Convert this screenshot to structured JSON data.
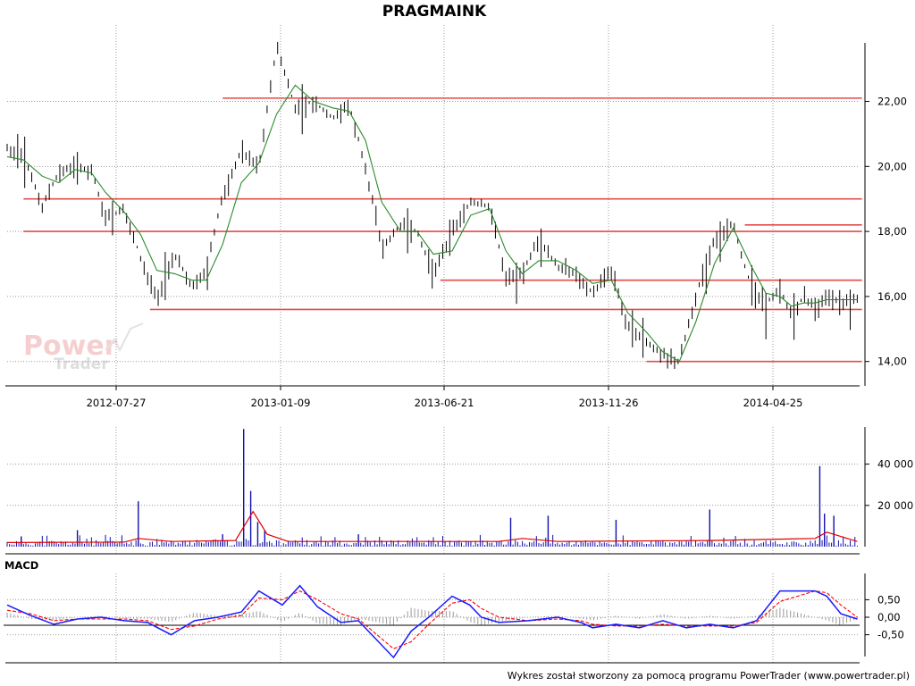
{
  "title": "PRAGMAINK",
  "footer": "Wykres został stworzony za pomocą programu PowerTrader (www.powertrader.pl)",
  "watermark": {
    "line1": "Power",
    "line2": "Trader"
  },
  "macd_label": "MACD",
  "colors": {
    "price": "#000000",
    "sma": "#2a8a2a",
    "level": "#e44b4b",
    "volume": "#1010b0",
    "volume_avg": "#e00000",
    "macd": "#1a1aff",
    "signal": "#ff0000",
    "hist": "#9a9a9a"
  },
  "chart_data": [
    {
      "type": "line",
      "title": "PRAGMAINK",
      "x_tick_labels": [
        "2012-07-27",
        "2013-01-09",
        "2013-06-21",
        "2013-11-26",
        "2014-04-25"
      ],
      "y_tick_labels": [
        "14,00",
        "16,00",
        "18,00",
        "20,00",
        "22,00"
      ],
      "y_ticks": [
        14,
        16,
        18,
        20,
        22
      ],
      "ylim": [
        13.25,
        23.8
      ],
      "grid": true,
      "x_days": [
        0,
        14,
        30,
        44,
        58,
        72,
        84,
        100,
        114,
        128,
        143,
        158,
        170,
        184,
        200,
        215,
        230,
        246,
        262,
        278,
        292,
        306,
        320,
        336,
        350,
        364,
        380,
        396,
        412,
        426,
        440,
        454,
        470,
        486,
        500,
        516,
        530,
        546,
        560,
        574,
        588,
        604,
        620,
        636,
        648,
        660,
        670,
        680,
        690,
        700,
        712,
        726
      ],
      "close": [
        20.6,
        20.3,
        18.8,
        19.8,
        20.0,
        19.9,
        18.4,
        18.7,
        17.2,
        15.9,
        17.3,
        16.3,
        16.8,
        19.1,
        20.5,
        20.0,
        23.7,
        21.8,
        22.0,
        21.5,
        21.9,
        20.0,
        17.5,
        18.2,
        18.0,
        16.7,
        18.0,
        18.9,
        18.8,
        16.6,
        16.7,
        17.8,
        16.9,
        16.7,
        16.1,
        16.8,
        15.1,
        14.6,
        14.2,
        14.0,
        16.0,
        17.8,
        18.2,
        16.2,
        15.8,
        16.2,
        15.4,
        16.0,
        15.7,
        16.0,
        15.8,
        15.9
      ],
      "sma": [
        20.3,
        20.2,
        19.7,
        19.5,
        19.9,
        19.8,
        19.2,
        18.6,
        17.9,
        16.8,
        16.7,
        16.5,
        16.5,
        17.6,
        19.5,
        20.1,
        21.6,
        22.5,
        22.0,
        21.8,
        21.7,
        20.8,
        18.9,
        18.0,
        18.0,
        17.3,
        17.4,
        18.5,
        18.7,
        17.4,
        16.7,
        17.1,
        17.1,
        16.8,
        16.4,
        16.5,
        15.5,
        14.9,
        14.3,
        14.0,
        15.2,
        17.0,
        18.1,
        16.9,
        16.1,
        16.0,
        15.7,
        15.8,
        15.8,
        15.9,
        15.9,
        15.9
      ],
      "levels": [
        {
          "value": 22.1,
          "from_day": 184,
          "to_day": 730
        },
        {
          "value": 19.0,
          "from_day": 14,
          "to_day": 730
        },
        {
          "value": 18.0,
          "from_day": 14,
          "to_day": 730
        },
        {
          "value": 18.2,
          "from_day": 630,
          "to_day": 730
        },
        {
          "value": 16.5,
          "from_day": 370,
          "to_day": 730
        },
        {
          "value": 15.6,
          "from_day": 122,
          "to_day": 730
        },
        {
          "value": 14.0,
          "from_day": 546,
          "to_day": 730
        }
      ]
    },
    {
      "type": "bar",
      "title": "",
      "y_tick_labels": [
        "20 000",
        "40 000"
      ],
      "y_ticks": [
        20000,
        40000
      ],
      "ylim": [
        0,
        58000
      ],
      "spikes": [
        {
          "day": 12,
          "value": 5000
        },
        {
          "day": 60,
          "value": 8000
        },
        {
          "day": 112,
          "value": 22000
        },
        {
          "day": 184,
          "value": 6000
        },
        {
          "day": 202,
          "value": 57000
        },
        {
          "day": 208,
          "value": 27000
        },
        {
          "day": 214,
          "value": 12000
        },
        {
          "day": 220,
          "value": 8000
        },
        {
          "day": 300,
          "value": 6000
        },
        {
          "day": 430,
          "value": 14000
        },
        {
          "day": 462,
          "value": 15000
        },
        {
          "day": 520,
          "value": 13000
        },
        {
          "day": 600,
          "value": 18000
        },
        {
          "day": 694,
          "value": 39000
        },
        {
          "day": 698,
          "value": 16000
        },
        {
          "day": 706,
          "value": 15000
        }
      ],
      "avg": [
        {
          "day": 0,
          "value": 2000
        },
        {
          "day": 100,
          "value": 2200
        },
        {
          "day": 112,
          "value": 4000
        },
        {
          "day": 140,
          "value": 2500
        },
        {
          "day": 195,
          "value": 3000
        },
        {
          "day": 210,
          "value": 17000
        },
        {
          "day": 222,
          "value": 6000
        },
        {
          "day": 240,
          "value": 2500
        },
        {
          "day": 420,
          "value": 2500
        },
        {
          "day": 440,
          "value": 4000
        },
        {
          "day": 470,
          "value": 2500
        },
        {
          "day": 600,
          "value": 3000
        },
        {
          "day": 690,
          "value": 4000
        },
        {
          "day": 700,
          "value": 7000
        },
        {
          "day": 726,
          "value": 2500
        }
      ]
    },
    {
      "type": "line",
      "title": "MACD",
      "y_tick_labels": [
        "-0,50",
        "0,00",
        "0,50"
      ],
      "y_ticks": [
        -0.5,
        0.0,
        0.5
      ],
      "ylim": [
        -1.3,
        1.25
      ],
      "series": [
        {
          "name": "MACD",
          "x": [
            0,
            20,
            40,
            60,
            80,
            100,
            120,
            140,
            160,
            180,
            200,
            215,
            235,
            250,
            265,
            285,
            300,
            330,
            345,
            360,
            380,
            395,
            405,
            420,
            445,
            470,
            490,
            500,
            520,
            540,
            560,
            580,
            600,
            620,
            640,
            660,
            690,
            700,
            712,
            726
          ],
          "y": [
            0.35,
            0.05,
            -0.2,
            -0.05,
            0.0,
            -0.1,
            -0.15,
            -0.5,
            -0.1,
            0.0,
            0.15,
            0.75,
            0.35,
            0.9,
            0.3,
            -0.15,
            -0.1,
            -1.15,
            -0.4,
            0.0,
            0.6,
            0.35,
            0.0,
            -0.15,
            -0.1,
            0.0,
            -0.15,
            -0.3,
            -0.2,
            -0.3,
            -0.1,
            -0.3,
            -0.2,
            -0.3,
            -0.1,
            0.75,
            0.75,
            0.6,
            0.1,
            -0.05
          ]
        },
        {
          "name": "Signal",
          "x": [
            0,
            20,
            40,
            60,
            80,
            100,
            120,
            140,
            160,
            180,
            200,
            215,
            235,
            250,
            265,
            285,
            300,
            330,
            345,
            360,
            380,
            395,
            405,
            420,
            445,
            470,
            490,
            500,
            520,
            540,
            560,
            580,
            600,
            620,
            640,
            660,
            690,
            700,
            712,
            726
          ],
          "y": [
            0.2,
            0.1,
            -0.1,
            -0.05,
            -0.05,
            -0.05,
            -0.1,
            -0.35,
            -0.25,
            -0.05,
            0.05,
            0.55,
            0.5,
            0.75,
            0.5,
            0.1,
            -0.05,
            -0.9,
            -0.7,
            -0.2,
            0.4,
            0.5,
            0.25,
            0.0,
            -0.1,
            -0.05,
            -0.1,
            -0.2,
            -0.25,
            -0.25,
            -0.2,
            -0.25,
            -0.25,
            -0.25,
            -0.15,
            0.45,
            0.75,
            0.7,
            0.35,
            0.0
          ]
        }
      ]
    }
  ]
}
